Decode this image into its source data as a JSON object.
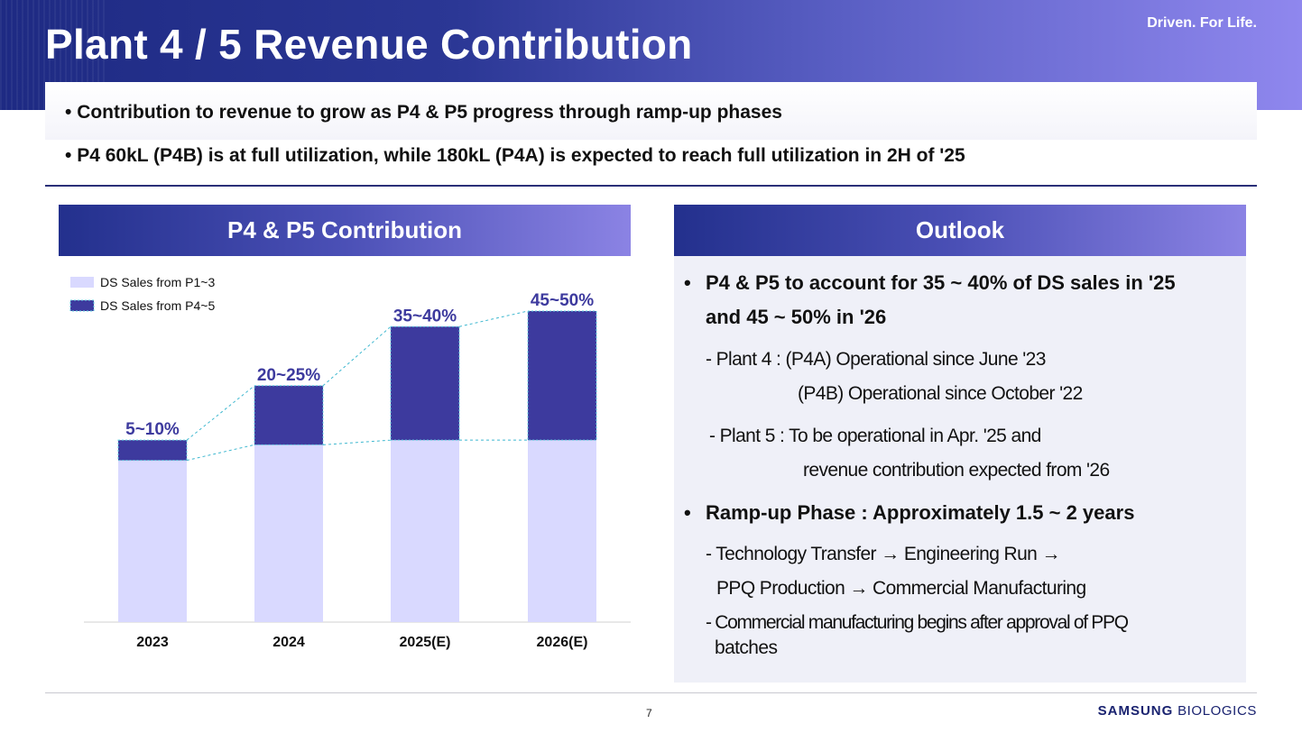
{
  "header": {
    "title": "Plant 4 / 5 Revenue Contribution",
    "tagline": "Driven. For Life."
  },
  "summary_bullets": [
    "Contribution to revenue to grow as P4 & P5 progress through ramp-up phases",
    "P4 60kL (P4B) is at full utilization, while 180kL (P4A) is expected to reach full utilization in 2H of '25"
  ],
  "left_panel": {
    "title": "P4 & P5 Contribution"
  },
  "right_panel": {
    "title": "Outlook",
    "bullet1_line1": "P4 & P5 to account for 35 ~ 40% of DS sales in '25",
    "bullet1_line2": "and 45 ~ 50% in '26",
    "plant4_line1": "- Plant 4 : (P4A) Operational since June '23",
    "plant4_line2": "(P4B) Operational since October '22",
    "plant5_line1": "- Plant 5 : To be operational in Apr. '25 and",
    "plant5_line2": "revenue contribution expected from '26",
    "bullet2": "Ramp-up Phase : Approximately 1.5 ~ 2 years",
    "rampup_line1": "- Technology Transfer  →  Engineering Run  →",
    "rampup_line2": "PPQ Production → Commercial Manufacturing",
    "commercial_line1": "- Commercial manufacturing begins after approval of PPQ",
    "commercial_line2": "batches"
  },
  "chart_data": {
    "type": "bar",
    "stacked": true,
    "categories": [
      "2023",
      "2024",
      "2025(E)",
      "2026(E)"
    ],
    "series": [
      {
        "name": "DS Sales from P1~3",
        "color": "#d9d9ff",
        "values": [
          52,
          57,
          58.5,
          58.5
        ]
      },
      {
        "name": "DS Sales from P4~5",
        "color": "#3d3a9e",
        "values": [
          6.5,
          19,
          36.5,
          41.5
        ]
      }
    ],
    "data_labels": [
      "5~10%",
      "20~25%",
      "35~40%",
      "45~50%"
    ],
    "ylim": [
      0,
      100
    ],
    "legend_position": "top-left",
    "connector_lines": "dashed",
    "label_color": "#3d3a9e"
  },
  "footer": {
    "page_number": "7",
    "logo_bold": "SAMSUNG",
    "logo_rest": "BIOLOGICS"
  }
}
